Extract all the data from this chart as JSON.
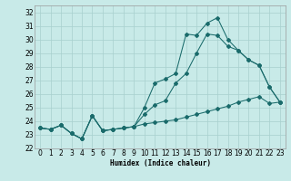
{
  "xlabel": "Humidex (Indice chaleur)",
  "background_color": "#c8eae8",
  "grid_color": "#a8d0ce",
  "line_color": "#1a6b6b",
  "xlim": [
    -0.5,
    23.5
  ],
  "ylim": [
    22,
    32.5
  ],
  "yticks": [
    22,
    23,
    24,
    25,
    26,
    27,
    28,
    29,
    30,
    31,
    32
  ],
  "xticks": [
    0,
    1,
    2,
    3,
    4,
    5,
    6,
    7,
    8,
    9,
    10,
    11,
    12,
    13,
    14,
    15,
    16,
    17,
    18,
    19,
    20,
    21,
    22,
    23
  ],
  "s1_x": [
    0,
    1,
    2,
    3,
    4,
    5,
    6,
    7,
    8,
    9,
    10,
    11,
    12,
    13,
    14,
    15,
    16,
    17,
    18,
    19,
    20,
    21,
    22,
    23
  ],
  "s1_y": [
    23.5,
    23.4,
    23.7,
    23.1,
    22.7,
    24.4,
    23.3,
    23.4,
    23.5,
    23.6,
    23.8,
    23.9,
    24.0,
    24.1,
    24.3,
    24.5,
    24.7,
    24.9,
    25.1,
    25.4,
    25.6,
    25.8,
    25.3,
    25.4
  ],
  "s2_x": [
    0,
    1,
    2,
    3,
    4,
    5,
    6,
    7,
    8,
    9,
    10,
    11,
    12,
    13,
    14,
    15,
    16,
    17,
    18,
    19,
    20,
    21,
    22,
    23
  ],
  "s2_y": [
    23.5,
    23.4,
    23.7,
    23.1,
    22.7,
    24.4,
    23.3,
    23.4,
    23.5,
    23.6,
    24.5,
    25.2,
    25.5,
    26.8,
    27.5,
    29.0,
    30.4,
    30.3,
    29.5,
    29.2,
    28.5,
    28.1,
    26.5,
    25.4
  ],
  "s3_x": [
    0,
    1,
    2,
    3,
    4,
    5,
    6,
    7,
    8,
    9,
    10,
    11,
    12,
    13,
    14,
    15,
    16,
    17,
    18,
    19,
    20,
    21,
    22,
    23
  ],
  "s3_y": [
    23.5,
    23.4,
    23.7,
    23.1,
    22.7,
    24.4,
    23.3,
    23.4,
    23.5,
    23.6,
    25.0,
    26.8,
    27.1,
    27.5,
    30.4,
    30.3,
    31.2,
    31.6,
    30.0,
    29.2,
    28.5,
    28.1,
    26.5,
    25.4
  ]
}
